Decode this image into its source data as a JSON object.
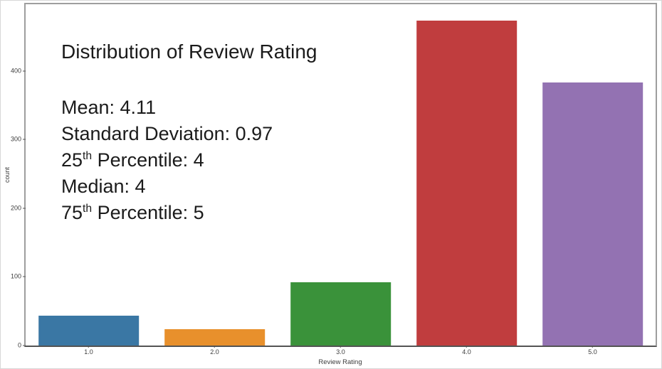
{
  "chart_data": {
    "type": "bar",
    "title": "Distribution of Review Rating",
    "xlabel": "Review Rating",
    "ylabel": "count",
    "categories": [
      "1.0",
      "2.0",
      "3.0",
      "4.0",
      "5.0"
    ],
    "values": [
      44,
      24,
      92,
      473,
      383
    ],
    "bar_colors": [
      "#3a77a4",
      "#e8902c",
      "#3a923a",
      "#c03d3e",
      "#9372b2"
    ],
    "ylim": [
      0,
      497
    ],
    "yticks": [
      0,
      100,
      200,
      300,
      400
    ],
    "grid": false,
    "legend": null,
    "annotations": [
      {
        "prefix": "Mean: 4.11",
        "sup": "",
        "rest": ""
      },
      {
        "prefix": "Standard Deviation: 0.97",
        "sup": "",
        "rest": ""
      },
      {
        "prefix": "25",
        "sup": "th",
        "rest": " Percentile: 4"
      },
      {
        "prefix": "Median: 4",
        "sup": "",
        "rest": ""
      },
      {
        "prefix": "75",
        "sup": "th",
        "rest": " Percentile: 5"
      }
    ]
  }
}
